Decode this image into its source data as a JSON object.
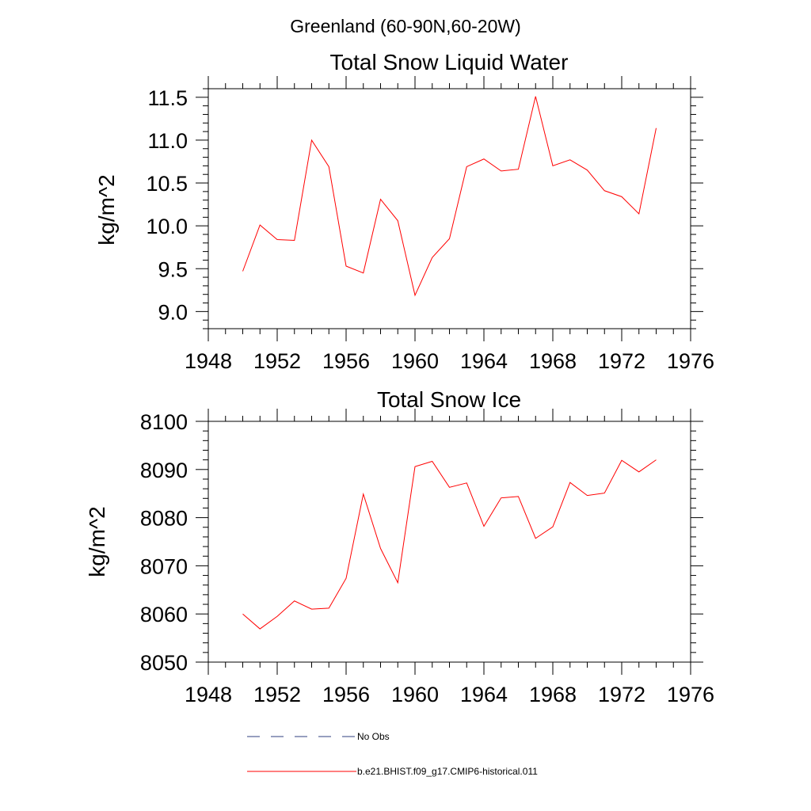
{
  "figure": {
    "title": "Greenland (60-90N,60-20W)"
  },
  "colors": {
    "model_line": "#ff0000",
    "obs_line": "#2f3f7f",
    "axis": "#000000"
  },
  "legend": {
    "entries": [
      {
        "label": "No Obs",
        "style": "dashed",
        "color": "#2f3f7f"
      },
      {
        "label": "b.e21.BHIST.f09_g17.CMIP6-historical.011",
        "style": "solid",
        "color": "#ff0000"
      }
    ]
  },
  "chart_data": [
    {
      "type": "line",
      "title": "Total Snow Liquid Water",
      "xlabel": "",
      "ylabel": "kg/m^2",
      "xlim": [
        1948,
        1976
      ],
      "ylim": [
        8.8,
        11.6
      ],
      "x_ticks": [
        1948,
        1952,
        1956,
        1960,
        1964,
        1968,
        1972,
        1976
      ],
      "y_ticks": [
        "9.0",
        "9.5",
        "10.0",
        "10.5",
        "11.0",
        "11.5"
      ],
      "grid": false,
      "series": [
        {
          "name": "b.e21.BHIST.f09_g17.CMIP6-historical.011",
          "x": [
            1950,
            1951,
            1952,
            1953,
            1954,
            1955,
            1956,
            1957,
            1958,
            1959,
            1960,
            1961,
            1962,
            1963,
            1964,
            1965,
            1966,
            1967,
            1968,
            1969,
            1970,
            1971,
            1972,
            1973,
            1974
          ],
          "y": [
            9.47,
            10.01,
            9.84,
            9.83,
            11.0,
            10.69,
            9.53,
            9.45,
            10.31,
            10.06,
            9.19,
            9.63,
            9.85,
            10.69,
            10.78,
            10.64,
            10.66,
            11.51,
            10.7,
            10.77,
            10.65,
            10.41,
            10.34,
            10.14,
            11.14
          ]
        }
      ]
    },
    {
      "type": "line",
      "title": "Total Snow Ice",
      "xlabel": "",
      "ylabel": "kg/m^2",
      "xlim": [
        1948,
        1976
      ],
      "ylim": [
        8050,
        8100
      ],
      "x_ticks": [
        1948,
        1952,
        1956,
        1960,
        1964,
        1968,
        1972,
        1976
      ],
      "y_ticks": [
        "8050",
        "8060",
        "8070",
        "8080",
        "8090",
        "8100"
      ],
      "grid": false,
      "series": [
        {
          "name": "b.e21.BHIST.f09_g17.CMIP6-historical.011",
          "x": [
            1950,
            1951,
            1952,
            1953,
            1954,
            1955,
            1956,
            1957,
            1958,
            1959,
            1960,
            1961,
            1962,
            1963,
            1964,
            1965,
            1966,
            1967,
            1968,
            1969,
            1970,
            1971,
            1972,
            1973,
            1974
          ],
          "y": [
            8060.0,
            8056.9,
            8059.5,
            8062.7,
            8061.0,
            8061.2,
            8067.4,
            8084.9,
            8073.6,
            8066.5,
            8090.6,
            8091.7,
            8086.3,
            8087.2,
            8078.2,
            8084.1,
            8084.4,
            8075.7,
            8078.1,
            8087.3,
            8084.6,
            8085.1,
            8091.9,
            8089.5,
            8092.0
          ]
        }
      ]
    }
  ]
}
